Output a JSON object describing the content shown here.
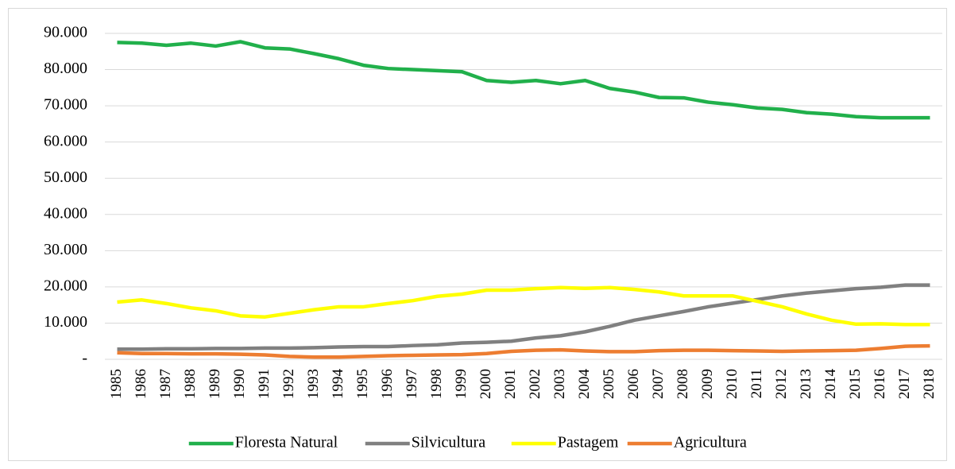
{
  "chart_data": {
    "type": "line",
    "categories": [
      "1985",
      "1986",
      "1987",
      "1988",
      "1989",
      "1990",
      "1991",
      "1992",
      "1993",
      "1994",
      "1995",
      "1996",
      "1997",
      "1998",
      "1999",
      "2000",
      "2001",
      "2002",
      "2003",
      "2004",
      "2005",
      "2006",
      "2007",
      "2008",
      "2009",
      "2010",
      "2011",
      "2012",
      "2013",
      "2014",
      "2015",
      "2016",
      "2017",
      "2018"
    ],
    "series": [
      {
        "name": "Floresta Natural",
        "color": "#21b04b",
        "values": [
          87500,
          87300,
          86700,
          87300,
          86500,
          87700,
          86000,
          85700,
          84400,
          83000,
          81200,
          80300,
          80000,
          79700,
          79400,
          77000,
          76500,
          77000,
          76100,
          77000,
          74800,
          73800,
          72300,
          72200,
          71000,
          70300,
          69400,
          69000,
          68100,
          67700,
          67000,
          66700,
          66700,
          66700
        ]
      },
      {
        "name": "Silvicultura",
        "color": "#808080",
        "values": [
          2800,
          2800,
          2900,
          2900,
          3000,
          3000,
          3100,
          3100,
          3200,
          3400,
          3500,
          3500,
          3800,
          4000,
          4500,
          4700,
          5000,
          5900,
          6500,
          7600,
          9100,
          10800,
          12000,
          13200,
          14500,
          15500,
          16500,
          17500,
          18300,
          18900,
          19500,
          19900,
          20500,
          20500
        ]
      },
      {
        "name": "Pastagem",
        "color": "#ffff00",
        "values": [
          15800,
          16400,
          15400,
          14200,
          13400,
          12000,
          11700,
          12700,
          13700,
          14500,
          14500,
          15400,
          16200,
          17400,
          18000,
          19100,
          19100,
          19500,
          19800,
          19600,
          19800,
          19300,
          18600,
          17500,
          17500,
          17500,
          16000,
          14500,
          12500,
          10800,
          9700,
          9800,
          9600,
          9600
        ]
      },
      {
        "name": "Agricultura",
        "color": "#ed7d31",
        "values": [
          1800,
          1600,
          1600,
          1500,
          1500,
          1400,
          1200,
          800,
          600,
          600,
          800,
          1000,
          1100,
          1200,
          1300,
          1600,
          2200,
          2500,
          2600,
          2300,
          2100,
          2100,
          2400,
          2500,
          2500,
          2400,
          2300,
          2200,
          2300,
          2400,
          2500,
          3000,
          3600,
          3700
        ]
      }
    ],
    "ylim": [
      0,
      90000
    ],
    "yticks": [
      {
        "value": 0,
        "label": "-"
      },
      {
        "value": 10000,
        "label": "10.000"
      },
      {
        "value": 20000,
        "label": "20.000"
      },
      {
        "value": 30000,
        "label": "30.000"
      },
      {
        "value": 40000,
        "label": "40.000"
      },
      {
        "value": 50000,
        "label": "50.000"
      },
      {
        "value": 60000,
        "label": "60.000"
      },
      {
        "value": 70000,
        "label": "70.000"
      },
      {
        "value": 80000,
        "label": "80.000"
      },
      {
        "value": 90000,
        "label": "90.000"
      }
    ],
    "grid": true,
    "legend": "bottom"
  }
}
